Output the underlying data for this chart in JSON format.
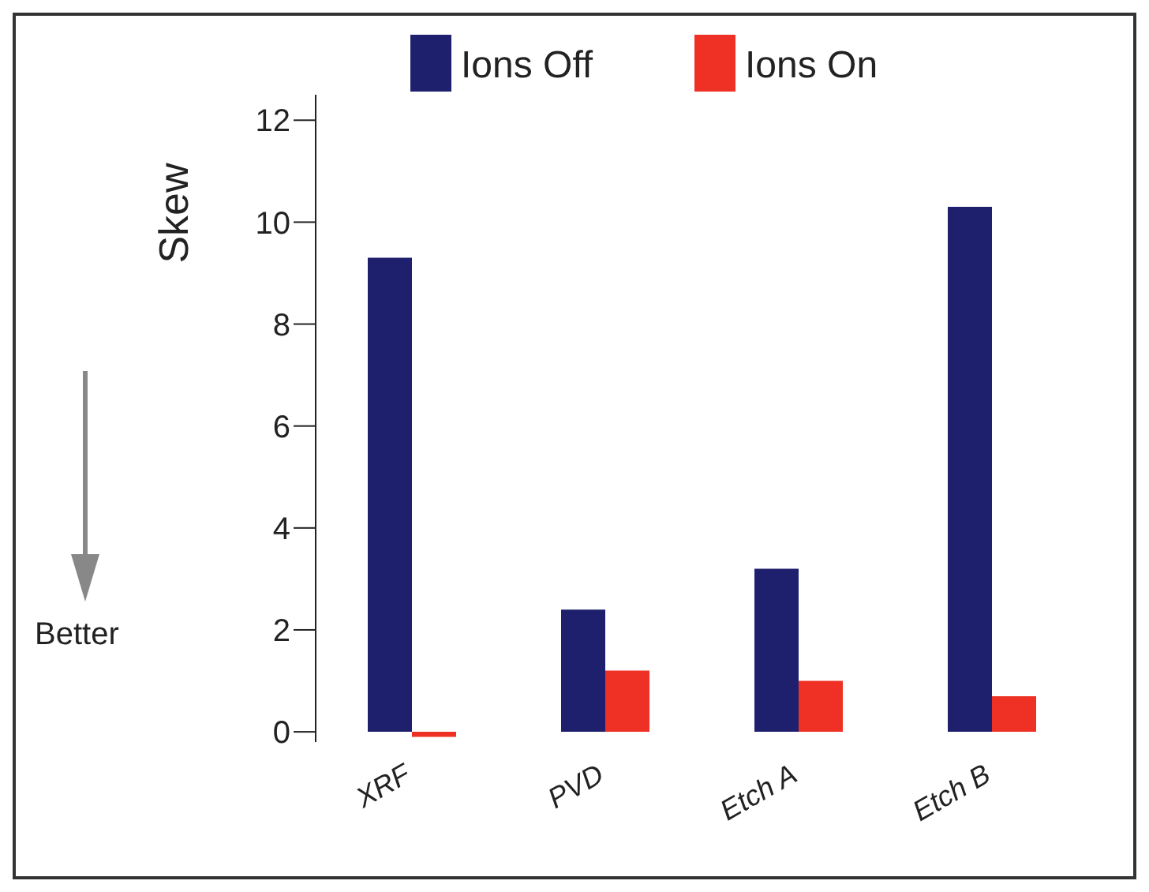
{
  "chart_data": {
    "type": "bar",
    "ylabel": "Skew",
    "categories": [
      "XRF",
      "PVD",
      "Etch A",
      "Etch B"
    ],
    "series": [
      {
        "name": "Ions Off",
        "color": "#1e206e",
        "values": [
          9.3,
          2.4,
          3.2,
          10.3
        ]
      },
      {
        "name": "Ions On",
        "color": "#ee3124",
        "values": [
          -0.1,
          1.2,
          1.0,
          0.7
        ]
      }
    ],
    "ylim": [
      -0.2,
      12.5
    ],
    "yticks": [
      0,
      2,
      4,
      6,
      8,
      10,
      12
    ],
    "grid": false,
    "legend": "top",
    "annotations": [
      "Better"
    ]
  }
}
